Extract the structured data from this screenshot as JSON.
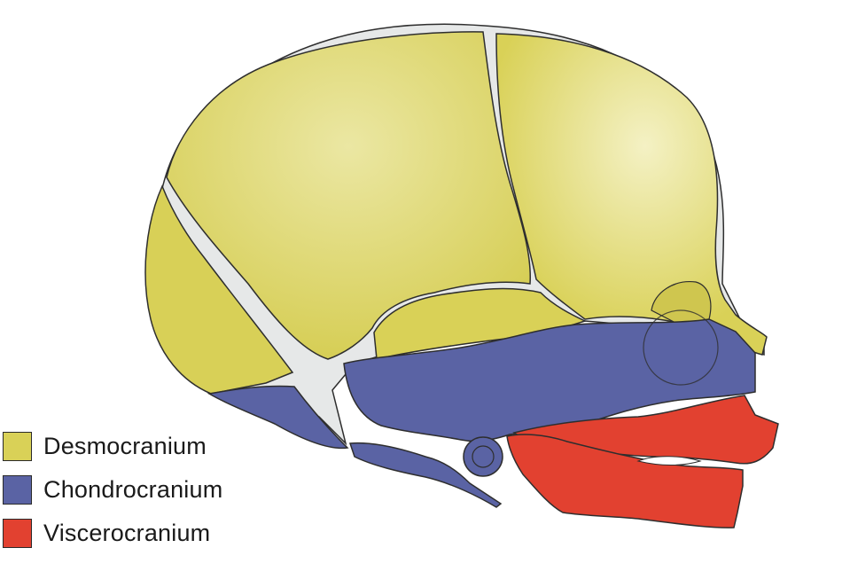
{
  "figure": {
    "regions": [
      {
        "id": "desmocranium",
        "color": "#d9d157",
        "highlight": "#f1edb0"
      },
      {
        "id": "chondrocranium",
        "color": "#5a63a4"
      },
      {
        "id": "viscerocranium",
        "color": "#e24130"
      }
    ],
    "suture_color": "#e6e8e8",
    "outline_color": "#2e2e2e"
  },
  "legend": {
    "items": [
      {
        "label": "Desmocranium",
        "color": "#d9d157"
      },
      {
        "label": "Chondrocranium",
        "color": "#5a63a4"
      },
      {
        "label": "Viscerocranium",
        "color": "#e24130"
      }
    ]
  }
}
